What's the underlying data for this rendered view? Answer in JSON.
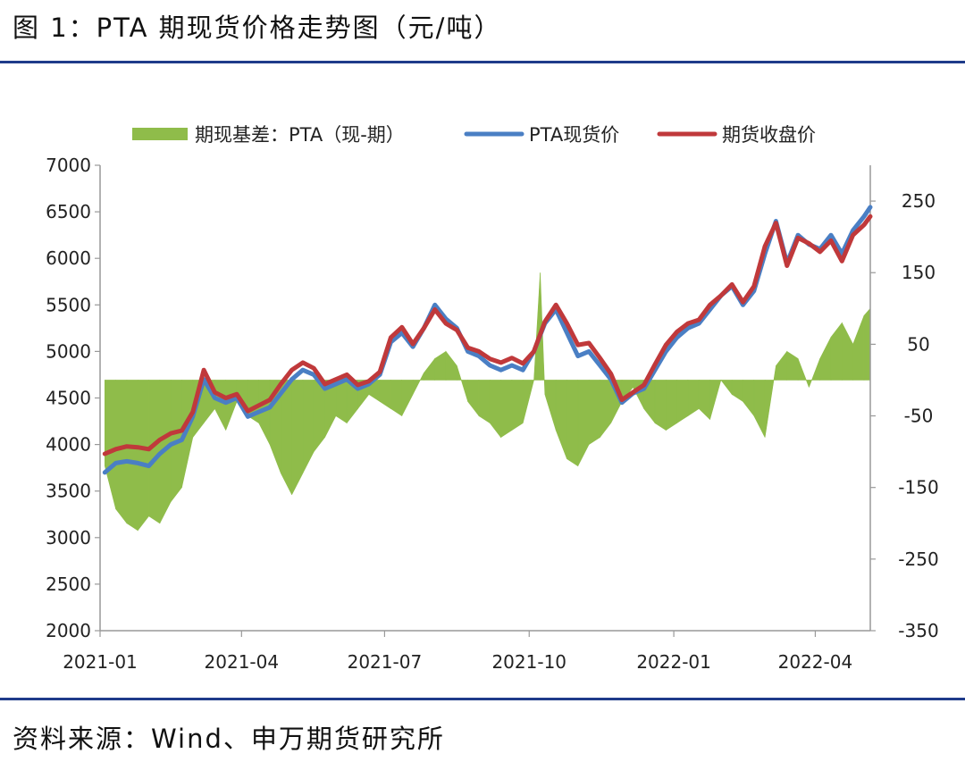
{
  "page": {
    "title": "图 1：PTA 期现货价格走势图（元/吨）",
    "source": "资料来源：Wind、申万期货研究所"
  },
  "colors": {
    "rule": "#1f3b8a",
    "basis": "#8fbc4a",
    "spot": "#4a7fc4",
    "futures": "#c0393b",
    "axis": "#999999"
  },
  "chart_data": {
    "type": "line",
    "legend_position": "top",
    "grid": false,
    "x_ticks": [
      "2021-01",
      "2021-04",
      "2021-07",
      "2021-10",
      "2022-01",
      "2022-04"
    ],
    "x_tick_dates": [
      "2021-01-01",
      "2021-04-01",
      "2021-07-01",
      "2021-10-01",
      "2022-01-01",
      "2022-04-01"
    ],
    "x_range": [
      "2021-01-01",
      "2022-05-06"
    ],
    "y_left": {
      "range": [
        2000,
        7000
      ],
      "ticks": [
        2000,
        2500,
        3000,
        3500,
        4000,
        4500,
        5000,
        5500,
        6000,
        6500,
        7000
      ]
    },
    "y_right": {
      "range": [
        -350,
        300
      ],
      "ticks": [
        -350,
        -250,
        -150,
        -50,
        50,
        150,
        250
      ]
    },
    "series": [
      {
        "name": "期现基差：PTA（现-期）",
        "kind": "area",
        "axis": "right",
        "points": [
          [
            "2021-01-04",
            -120
          ],
          [
            "2021-01-11",
            -180
          ],
          [
            "2021-01-18",
            -200
          ],
          [
            "2021-01-25",
            -210
          ],
          [
            "2021-02-01",
            -190
          ],
          [
            "2021-02-08",
            -200
          ],
          [
            "2021-02-15",
            -170
          ],
          [
            "2021-02-22",
            -150
          ],
          [
            "2021-03-01",
            -80
          ],
          [
            "2021-03-08",
            -60
          ],
          [
            "2021-03-15",
            -40
          ],
          [
            "2021-03-22",
            -70
          ],
          [
            "2021-03-29",
            -30
          ],
          [
            "2021-04-05",
            -50
          ],
          [
            "2021-04-12",
            -60
          ],
          [
            "2021-04-19",
            -90
          ],
          [
            "2021-04-26",
            -130
          ],
          [
            "2021-05-03",
            -160
          ],
          [
            "2021-05-10",
            -130
          ],
          [
            "2021-05-17",
            -100
          ],
          [
            "2021-05-24",
            -80
          ],
          [
            "2021-05-31",
            -50
          ],
          [
            "2021-06-07",
            -60
          ],
          [
            "2021-06-14",
            -40
          ],
          [
            "2021-06-21",
            -20
          ],
          [
            "2021-06-28",
            -30
          ],
          [
            "2021-07-05",
            -40
          ],
          [
            "2021-07-12",
            -50
          ],
          [
            "2021-07-19",
            -20
          ],
          [
            "2021-07-26",
            10
          ],
          [
            "2021-08-02",
            30
          ],
          [
            "2021-08-09",
            40
          ],
          [
            "2021-08-16",
            20
          ],
          [
            "2021-08-23",
            -30
          ],
          [
            "2021-08-30",
            -50
          ],
          [
            "2021-09-06",
            -60
          ],
          [
            "2021-09-13",
            -80
          ],
          [
            "2021-09-20",
            -70
          ],
          [
            "2021-09-27",
            -60
          ],
          [
            "2021-10-04",
            0
          ],
          [
            "2021-10-08",
            150
          ],
          [
            "2021-10-11",
            -20
          ],
          [
            "2021-10-18",
            -70
          ],
          [
            "2021-10-25",
            -110
          ],
          [
            "2021-11-01",
            -120
          ],
          [
            "2021-11-08",
            -90
          ],
          [
            "2021-11-15",
            -80
          ],
          [
            "2021-11-22",
            -60
          ],
          [
            "2021-11-29",
            -30
          ],
          [
            "2021-12-06",
            -10
          ],
          [
            "2021-12-13",
            -40
          ],
          [
            "2021-12-20",
            -60
          ],
          [
            "2021-12-27",
            -70
          ],
          [
            "2022-01-03",
            -60
          ],
          [
            "2022-01-10",
            -50
          ],
          [
            "2022-01-17",
            -40
          ],
          [
            "2022-01-24",
            -55
          ],
          [
            "2022-01-31",
            0
          ],
          [
            "2022-02-07",
            -20
          ],
          [
            "2022-02-14",
            -30
          ],
          [
            "2022-02-21",
            -50
          ],
          [
            "2022-02-28",
            -80
          ],
          [
            "2022-03-07",
            20
          ],
          [
            "2022-03-14",
            40
          ],
          [
            "2022-03-21",
            30
          ],
          [
            "2022-03-28",
            -10
          ],
          [
            "2022-04-04",
            30
          ],
          [
            "2022-04-11",
            60
          ],
          [
            "2022-04-18",
            80
          ],
          [
            "2022-04-25",
            50
          ],
          [
            "2022-05-02",
            90
          ],
          [
            "2022-05-06",
            100
          ]
        ]
      },
      {
        "name": "PTA现货价",
        "kind": "line",
        "axis": "left",
        "points": [
          [
            "2021-01-04",
            3700
          ],
          [
            "2021-01-11",
            3800
          ],
          [
            "2021-01-18",
            3820
          ],
          [
            "2021-01-25",
            3800
          ],
          [
            "2021-02-01",
            3770
          ],
          [
            "2021-02-08",
            3900
          ],
          [
            "2021-02-15",
            4000
          ],
          [
            "2021-02-22",
            4050
          ],
          [
            "2021-03-01",
            4300
          ],
          [
            "2021-03-08",
            4700
          ],
          [
            "2021-03-15",
            4500
          ],
          [
            "2021-03-22",
            4450
          ],
          [
            "2021-03-29",
            4500
          ],
          [
            "2021-04-05",
            4300
          ],
          [
            "2021-04-12",
            4350
          ],
          [
            "2021-04-19",
            4400
          ],
          [
            "2021-04-26",
            4550
          ],
          [
            "2021-05-03",
            4700
          ],
          [
            "2021-05-10",
            4800
          ],
          [
            "2021-05-17",
            4750
          ],
          [
            "2021-05-24",
            4600
          ],
          [
            "2021-05-31",
            4650
          ],
          [
            "2021-06-07",
            4700
          ],
          [
            "2021-06-14",
            4600
          ],
          [
            "2021-06-21",
            4650
          ],
          [
            "2021-06-28",
            4750
          ],
          [
            "2021-07-05",
            5100
          ],
          [
            "2021-07-12",
            5200
          ],
          [
            "2021-07-19",
            5050
          ],
          [
            "2021-07-26",
            5250
          ],
          [
            "2021-08-02",
            5500
          ],
          [
            "2021-08-09",
            5350
          ],
          [
            "2021-08-16",
            5250
          ],
          [
            "2021-08-23",
            5000
          ],
          [
            "2021-08-30",
            4950
          ],
          [
            "2021-09-06",
            4850
          ],
          [
            "2021-09-13",
            4800
          ],
          [
            "2021-09-20",
            4850
          ],
          [
            "2021-09-27",
            4800
          ],
          [
            "2021-10-04",
            5000
          ],
          [
            "2021-10-11",
            5300
          ],
          [
            "2021-10-18",
            5450
          ],
          [
            "2021-10-25",
            5200
          ],
          [
            "2021-11-01",
            4950
          ],
          [
            "2021-11-08",
            5000
          ],
          [
            "2021-11-15",
            4850
          ],
          [
            "2021-11-22",
            4700
          ],
          [
            "2021-11-29",
            4450
          ],
          [
            "2021-12-06",
            4550
          ],
          [
            "2021-12-13",
            4600
          ],
          [
            "2021-12-20",
            4800
          ],
          [
            "2021-12-27",
            5000
          ],
          [
            "2022-01-03",
            5150
          ],
          [
            "2022-01-10",
            5250
          ],
          [
            "2022-01-17",
            5300
          ],
          [
            "2022-01-24",
            5450
          ],
          [
            "2022-01-31",
            5600
          ],
          [
            "2022-02-07",
            5700
          ],
          [
            "2022-02-14",
            5500
          ],
          [
            "2022-02-21",
            5650
          ],
          [
            "2022-02-28",
            6050
          ],
          [
            "2022-03-07",
            6400
          ],
          [
            "2022-03-14",
            5950
          ],
          [
            "2022-03-21",
            6250
          ],
          [
            "2022-03-28",
            6150
          ],
          [
            "2022-04-04",
            6100
          ],
          [
            "2022-04-11",
            6250
          ],
          [
            "2022-04-18",
            6050
          ],
          [
            "2022-04-25",
            6300
          ],
          [
            "2022-05-02",
            6450
          ],
          [
            "2022-05-06",
            6550
          ]
        ]
      },
      {
        "name": "期货收盘价",
        "kind": "line",
        "axis": "left",
        "points": [
          [
            "2021-01-04",
            3900
          ],
          [
            "2021-01-11",
            3950
          ],
          [
            "2021-01-18",
            3980
          ],
          [
            "2021-01-25",
            3970
          ],
          [
            "2021-02-01",
            3950
          ],
          [
            "2021-02-08",
            4050
          ],
          [
            "2021-02-15",
            4120
          ],
          [
            "2021-02-22",
            4150
          ],
          [
            "2021-03-01",
            4350
          ],
          [
            "2021-03-08",
            4800
          ],
          [
            "2021-03-15",
            4560
          ],
          [
            "2021-03-22",
            4500
          ],
          [
            "2021-03-29",
            4540
          ],
          [
            "2021-04-05",
            4360
          ],
          [
            "2021-04-12",
            4420
          ],
          [
            "2021-04-19",
            4480
          ],
          [
            "2021-04-26",
            4650
          ],
          [
            "2021-05-03",
            4800
          ],
          [
            "2021-05-10",
            4880
          ],
          [
            "2021-05-17",
            4820
          ],
          [
            "2021-05-24",
            4650
          ],
          [
            "2021-05-31",
            4700
          ],
          [
            "2021-06-07",
            4750
          ],
          [
            "2021-06-14",
            4640
          ],
          [
            "2021-06-21",
            4680
          ],
          [
            "2021-06-28",
            4780
          ],
          [
            "2021-07-05",
            5150
          ],
          [
            "2021-07-12",
            5260
          ],
          [
            "2021-07-19",
            5080
          ],
          [
            "2021-07-26",
            5250
          ],
          [
            "2021-08-02",
            5450
          ],
          [
            "2021-08-09",
            5300
          ],
          [
            "2021-08-16",
            5230
          ],
          [
            "2021-08-23",
            5040
          ],
          [
            "2021-08-30",
            5000
          ],
          [
            "2021-09-06",
            4920
          ],
          [
            "2021-09-13",
            4880
          ],
          [
            "2021-09-20",
            4930
          ],
          [
            "2021-09-27",
            4870
          ],
          [
            "2021-10-04",
            5000
          ],
          [
            "2021-10-11",
            5320
          ],
          [
            "2021-10-18",
            5500
          ],
          [
            "2021-10-25",
            5300
          ],
          [
            "2021-11-01",
            5070
          ],
          [
            "2021-11-08",
            5090
          ],
          [
            "2021-11-15",
            4930
          ],
          [
            "2021-11-22",
            4760
          ],
          [
            "2021-11-29",
            4480
          ],
          [
            "2021-12-06",
            4560
          ],
          [
            "2021-12-13",
            4640
          ],
          [
            "2021-12-20",
            4860
          ],
          [
            "2021-12-27",
            5070
          ],
          [
            "2022-01-03",
            5210
          ],
          [
            "2022-01-10",
            5300
          ],
          [
            "2022-01-17",
            5340
          ],
          [
            "2022-01-24",
            5500
          ],
          [
            "2022-01-31",
            5600
          ],
          [
            "2022-02-07",
            5720
          ],
          [
            "2022-02-14",
            5530
          ],
          [
            "2022-02-21",
            5700
          ],
          [
            "2022-02-28",
            6130
          ],
          [
            "2022-03-07",
            6380
          ],
          [
            "2022-03-14",
            5920
          ],
          [
            "2022-03-21",
            6220
          ],
          [
            "2022-03-28",
            6160
          ],
          [
            "2022-04-04",
            6070
          ],
          [
            "2022-04-11",
            6190
          ],
          [
            "2022-04-18",
            5970
          ],
          [
            "2022-04-25",
            6250
          ],
          [
            "2022-05-02",
            6360
          ],
          [
            "2022-05-06",
            6450
          ]
        ]
      }
    ]
  }
}
